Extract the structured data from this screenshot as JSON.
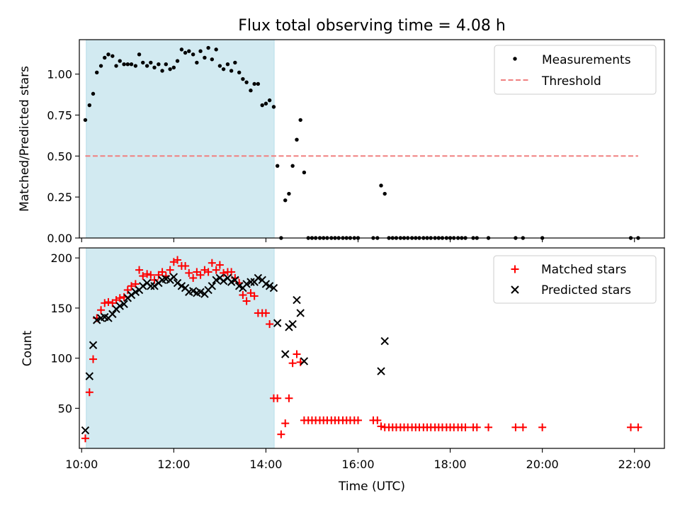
{
  "title": "Flux total observing time = 4.08 h",
  "chart_data": [
    {
      "type": "scatter",
      "panel": "top",
      "ylabel": "Matched/Predicted stars",
      "xlim": [
        9.95,
        22.65
      ],
      "ylim": [
        0,
        1.21
      ],
      "yticks": [
        0,
        0.25,
        0.5,
        0.75,
        1.0
      ],
      "ytick_labels": [
        "0.00",
        "0.25",
        "0.50",
        "0.75",
        "1.00"
      ],
      "shaded_interval": [
        10.1,
        14.18
      ],
      "legend_position": "top-right",
      "series": [
        {
          "name": "Measurements",
          "marker": "dot",
          "color": "#000000",
          "x": [
            10.08,
            10.17,
            10.25,
            10.33,
            10.42,
            10.5,
            10.58,
            10.67,
            10.75,
            10.83,
            10.92,
            11.0,
            11.08,
            11.17,
            11.25,
            11.33,
            11.42,
            11.5,
            11.58,
            11.67,
            11.75,
            11.83,
            11.92,
            12.0,
            12.08,
            12.17,
            12.25,
            12.33,
            12.42,
            12.5,
            12.58,
            12.67,
            12.75,
            12.83,
            12.92,
            13.0,
            13.08,
            13.17,
            13.25,
            13.33,
            13.42,
            13.5,
            13.58,
            13.67,
            13.75,
            13.83,
            13.92,
            14.0,
            14.08,
            14.17,
            14.25,
            14.33,
            14.42,
            14.5,
            14.58,
            14.67,
            14.75,
            14.83,
            14.92,
            15.0,
            15.08,
            15.17,
            15.25,
            15.33,
            15.42,
            15.5,
            15.58,
            15.67,
            15.75,
            15.83,
            15.92,
            16.0,
            16.33,
            16.42,
            16.5,
            16.58,
            16.67,
            16.75,
            16.83,
            16.92,
            17.0,
            17.08,
            17.17,
            17.25,
            17.33,
            17.42,
            17.5,
            17.58,
            17.67,
            17.75,
            17.83,
            17.92,
            18.0,
            18.08,
            18.17,
            18.25,
            18.33,
            18.5,
            18.58,
            18.83,
            19.42,
            19.58,
            20.0,
            21.92,
            22.08
          ],
          "y": [
            0.72,
            0.81,
            0.88,
            1.01,
            1.05,
            1.1,
            1.12,
            1.11,
            1.05,
            1.08,
            1.06,
            1.06,
            1.06,
            1.05,
            1.12,
            1.07,
            1.05,
            1.07,
            1.04,
            1.06,
            1.02,
            1.06,
            1.03,
            1.04,
            1.08,
            1.15,
            1.13,
            1.14,
            1.12,
            1.07,
            1.14,
            1.1,
            1.16,
            1.09,
            1.15,
            1.05,
            1.03,
            1.06,
            1.02,
            1.07,
            1.01,
            0.97,
            0.95,
            0.9,
            0.94,
            0.94,
            0.81,
            0.82,
            0.84,
            0.8,
            0.44,
            0.0,
            0.23,
            0.27,
            0.44,
            0.6,
            0.72,
            0.4,
            0.0,
            0.0,
            0.0,
            0.0,
            0.0,
            0.0,
            0.0,
            0.0,
            0.0,
            0.0,
            0.0,
            0.0,
            0.0,
            0.0,
            0.0,
            0.0,
            0.32,
            0.27,
            0.0,
            0.0,
            0.0,
            0.0,
            0.0,
            0.0,
            0.0,
            0.0,
            0.0,
            0.0,
            0.0,
            0.0,
            0.0,
            0.0,
            0.0,
            0.0,
            0.0,
            0.0,
            0.0,
            0.0,
            0.0,
            0.0,
            0.0,
            0.0,
            0.0,
            0.0,
            0.0,
            0.0,
            0.0
          ]
        },
        {
          "name": "Threshold",
          "marker": "dashed-line",
          "color": "#f08080",
          "x": [
            10.08,
            22.08
          ],
          "y": [
            0.5,
            0.5
          ]
        }
      ]
    },
    {
      "type": "scatter",
      "panel": "bottom",
      "ylabel": "Count",
      "xlabel": "Time (UTC)",
      "xlim": [
        9.95,
        22.65
      ],
      "ylim": [
        10,
        210
      ],
      "yticks": [
        50,
        100,
        150,
        200
      ],
      "ytick_labels": [
        "50",
        "100",
        "150",
        "200"
      ],
      "xticks": [
        10,
        12,
        14,
        16,
        18,
        20,
        22
      ],
      "xtick_labels": [
        "10:00",
        "12:00",
        "14:00",
        "16:00",
        "18:00",
        "20:00",
        "22:00"
      ],
      "shaded_interval": [
        10.1,
        14.18
      ],
      "legend_position": "top-right",
      "series": [
        {
          "name": "Matched stars",
          "marker": "plus",
          "color": "#ff0000",
          "x": [
            10.08,
            10.17,
            10.25,
            10.33,
            10.42,
            10.5,
            10.58,
            10.67,
            10.75,
            10.83,
            10.92,
            11.0,
            11.08,
            11.17,
            11.25,
            11.33,
            11.42,
            11.5,
            11.58,
            11.67,
            11.75,
            11.83,
            11.92,
            12.0,
            12.08,
            12.17,
            12.25,
            12.33,
            12.42,
            12.5,
            12.58,
            12.67,
            12.75,
            12.83,
            12.92,
            13.0,
            13.08,
            13.17,
            13.25,
            13.33,
            13.42,
            13.5,
            13.58,
            13.67,
            13.75,
            13.83,
            13.92,
            14.0,
            14.08,
            14.17,
            14.25,
            14.33,
            14.42,
            14.5,
            14.58,
            14.67,
            14.75,
            14.83,
            14.92,
            15.0,
            15.08,
            15.17,
            15.25,
            15.33,
            15.42,
            15.5,
            15.58,
            15.67,
            15.75,
            15.83,
            15.92,
            16.0,
            16.33,
            16.42,
            16.5,
            16.58,
            16.67,
            16.75,
            16.83,
            16.92,
            17.0,
            17.08,
            17.17,
            17.25,
            17.33,
            17.42,
            17.5,
            17.58,
            17.67,
            17.75,
            17.83,
            17.92,
            18.0,
            18.08,
            18.17,
            18.25,
            18.33,
            18.5,
            18.58,
            18.83,
            19.42,
            19.58,
            20.0,
            21.92,
            22.08
          ],
          "y": [
            20,
            66,
            99,
            140,
            148,
            155,
            156,
            155,
            158,
            160,
            161,
            168,
            172,
            174,
            188,
            182,
            184,
            183,
            178,
            183,
            186,
            182,
            188,
            196,
            198,
            192,
            192,
            185,
            180,
            186,
            183,
            188,
            186,
            195,
            188,
            193,
            185,
            186,
            186,
            180,
            175,
            163,
            157,
            165,
            162,
            145,
            145,
            145,
            134,
            60,
            60,
            24,
            35,
            60,
            95,
            104,
            96,
            38,
            38,
            38,
            38,
            38,
            38,
            38,
            38,
            38,
            38,
            38,
            38,
            38,
            38,
            38,
            38,
            38,
            32,
            31,
            31,
            31,
            31,
            31,
            31,
            31,
            31,
            31,
            31,
            31,
            31,
            31,
            31,
            31,
            31,
            31,
            31,
            31,
            31,
            31,
            31,
            31,
            31,
            31,
            31,
            31,
            31,
            31,
            31
          ]
        },
        {
          "name": "Predicted stars",
          "marker": "x",
          "color": "#000000",
          "x": [
            10.08,
            10.17,
            10.25,
            10.33,
            10.42,
            10.5,
            10.58,
            10.67,
            10.75,
            10.83,
            10.92,
            11.0,
            11.08,
            11.17,
            11.25,
            11.33,
            11.42,
            11.5,
            11.58,
            11.67,
            11.75,
            11.83,
            11.92,
            12.0,
            12.08,
            12.17,
            12.25,
            12.33,
            12.42,
            12.5,
            12.58,
            12.67,
            12.75,
            12.83,
            12.92,
            13.0,
            13.08,
            13.17,
            13.25,
            13.33,
            13.42,
            13.5,
            13.58,
            13.67,
            13.75,
            13.83,
            13.92,
            14.0,
            14.08,
            14.17,
            14.25,
            14.42,
            14.5,
            14.58,
            14.67,
            14.75,
            14.83,
            16.5,
            16.58
          ],
          "y": [
            28,
            82,
            113,
            138,
            140,
            141,
            140,
            144,
            149,
            152,
            154,
            160,
            163,
            166,
            168,
            172,
            175,
            172,
            172,
            175,
            178,
            179,
            178,
            181,
            175,
            172,
            170,
            166,
            167,
            165,
            166,
            164,
            168,
            172,
            178,
            180,
            177,
            180,
            176,
            178,
            172,
            170,
            174,
            176,
            176,
            180,
            178,
            174,
            172,
            170,
            135,
            104,
            131,
            134,
            158,
            145,
            97,
            87,
            117
          ]
        }
      ]
    }
  ]
}
